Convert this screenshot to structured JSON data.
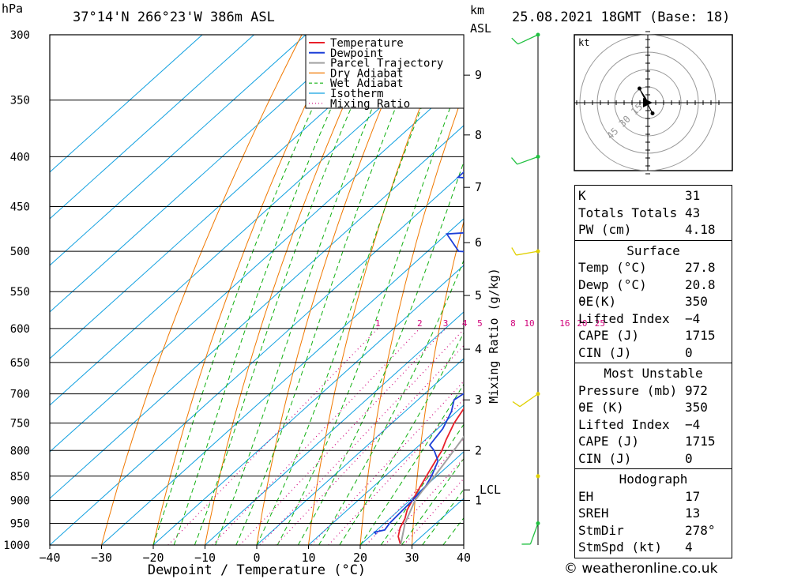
{
  "header": {
    "location": "37°14'N  266°23'W  386m  ASL",
    "datetime": "25.08.2021  18GMT  (Base: 18)",
    "hpa_unit": "hPa",
    "km_unit": "km",
    "asl_unit": "ASL"
  },
  "chart_data": {
    "type": "line",
    "title": "37°14'N  266°23'W  386m  ASL",
    "xlabel": "Dewpoint / Temperature (°C)",
    "ylabel": "hPa",
    "y2label": "Mixing Ratio (g/kg)",
    "xlim": [
      -40,
      40
    ],
    "ylim": [
      1000,
      300
    ],
    "pressure_ticks": [
      300,
      350,
      400,
      450,
      500,
      550,
      600,
      650,
      700,
      750,
      800,
      850,
      900,
      950,
      1000
    ],
    "temp_ticks": [
      -40,
      -30,
      -20,
      -10,
      0,
      10,
      20,
      30,
      40
    ],
    "temp_tick_labels": [
      "−40",
      "−30",
      "−20",
      "−10",
      "0",
      "10",
      "20",
      "30",
      "40"
    ],
    "km_ticks": [
      {
        "label": "1",
        "p": 900
      },
      {
        "label": "2",
        "p": 800
      },
      {
        "label": "3",
        "p": 710
      },
      {
        "label": "4",
        "p": 630
      },
      {
        "label": "5",
        "p": 555
      },
      {
        "label": "6",
        "p": 490
      },
      {
        "label": "7",
        "p": 430
      },
      {
        "label": "8",
        "p": 380
      },
      {
        "label": "9",
        "p": 330
      }
    ],
    "lcl": {
      "label": "LCL",
      "p": 878
    },
    "mixing_ratio_labels": [
      "1",
      "2",
      "3",
      "4",
      "5",
      "8",
      "10",
      "16",
      "20",
      "25"
    ],
    "legend": [
      "Temperature",
      "Dewpoint",
      "Parcel Trajectory",
      "Dry Adiabat",
      "Wet Adiabat",
      "Isotherm",
      "Mixing Ratio"
    ],
    "legend_position": "top-right",
    "colors": {
      "temperature": "#e8202a",
      "dewpoint": "#1c3fd8",
      "parcel": "#a0a0a0",
      "dry_adiabat": "#f07800",
      "wet_adiabat": "#10b010",
      "isotherm": "#10a0e0",
      "mixing_ratio": "#d0007a",
      "wind_green": "#20c040",
      "wind_yellow": "#e0d000"
    },
    "series": [
      {
        "name": "Temperature",
        "points": [
          [
            1000,
            27.8
          ],
          [
            980,
            25.5
          ],
          [
            960,
            24
          ],
          [
            940,
            23
          ],
          [
            920,
            21.5
          ],
          [
            900,
            20.5
          ],
          [
            870,
            19
          ],
          [
            850,
            18
          ],
          [
            820,
            16.5
          ],
          [
            800,
            15.5
          ],
          [
            780,
            14
          ],
          [
            750,
            12
          ],
          [
            720,
            10.5
          ],
          [
            700,
            9.5
          ],
          [
            680,
            9
          ],
          [
            650,
            7.5
          ],
          [
            620,
            6
          ],
          [
            600,
            5
          ],
          [
            580,
            4
          ],
          [
            550,
            2.5
          ],
          [
            520,
            0
          ],
          [
            500,
            -3
          ],
          [
            490,
            -3
          ],
          [
            470,
            -5
          ],
          [
            450,
            -8
          ],
          [
            430,
            -10
          ],
          [
            420,
            -10.5
          ],
          [
            400,
            -14
          ],
          [
            380,
            -18
          ],
          [
            360,
            -22
          ],
          [
            340,
            -26
          ],
          [
            320,
            -30
          ],
          [
            300,
            -34
          ]
        ]
      },
      {
        "name": "Dewpoint",
        "points": [
          [
            975,
            20.8
          ],
          [
            970,
            20
          ],
          [
            965,
            21.5
          ],
          [
            950,
            21
          ],
          [
            900,
            20.5
          ],
          [
            870,
            20
          ],
          [
            850,
            19
          ],
          [
            820,
            17
          ],
          [
            800,
            14
          ],
          [
            790,
            12
          ],
          [
            760,
            11
          ],
          [
            730,
            9
          ],
          [
            710,
            7
          ],
          [
            700,
            7.5
          ],
          [
            690,
            8
          ],
          [
            670,
            6
          ],
          [
            650,
            5
          ],
          [
            630,
            5
          ],
          [
            620,
            6.5
          ],
          [
            610,
            4
          ],
          [
            600,
            5
          ],
          [
            580,
            3
          ],
          [
            560,
            1.5
          ],
          [
            550,
            -5
          ],
          [
            540,
            -7
          ],
          [
            530,
            -7
          ],
          [
            525,
            -4
          ],
          [
            515,
            -4
          ],
          [
            505,
            -11
          ],
          [
            500,
            -24
          ],
          [
            480,
            -30
          ],
          [
            470,
            -5
          ],
          [
            468,
            -15
          ],
          [
            465,
            -15
          ],
          [
            460,
            -5
          ],
          [
            455,
            -20
          ],
          [
            450,
            -30
          ],
          [
            445,
            -20
          ],
          [
            440,
            -4
          ],
          [
            430,
            -4
          ],
          [
            420,
            -40
          ],
          [
            400,
            -40
          ],
          [
            380,
            -37
          ],
          [
            360,
            -25
          ],
          [
            355,
            -12
          ],
          [
            350,
            -21
          ],
          [
            345,
            -21
          ],
          [
            320,
            -26
          ],
          [
            300,
            -26
          ],
          [
            290,
            -20
          ]
        ]
      },
      {
        "name": "Parcel Trajectory",
        "points": [
          [
            1000,
            27.8
          ],
          [
            950,
            24
          ],
          [
            900,
            21
          ],
          [
            878,
            20.3
          ],
          [
            850,
            19.6
          ],
          [
            800,
            17.8
          ],
          [
            750,
            15.8
          ],
          [
            700,
            13.5
          ],
          [
            650,
            11
          ],
          [
            600,
            8.2
          ],
          [
            550,
            5
          ],
          [
            500,
            1.3
          ],
          [
            450,
            -3
          ],
          [
            400,
            -8
          ],
          [
            370,
            -12
          ]
        ]
      }
    ],
    "wind_barbs": [
      {
        "p": 300,
        "color": "green",
        "dir_deg": 245,
        "speed_kt": 10
      },
      {
        "p": 400,
        "color": "green",
        "dir_deg": 250,
        "speed_kt": 10
      },
      {
        "p": 500,
        "color": "yellow",
        "dir_deg": 260,
        "speed_kt": 10
      },
      {
        "p": 700,
        "color": "yellow",
        "dir_deg": 235,
        "speed_kt": 10
      },
      {
        "p": 850,
        "color": "yellow",
        "dir_deg": 0,
        "speed_kt": 0
      },
      {
        "p": 950,
        "color": "green",
        "dir_deg": 200,
        "speed_kt": 5
      }
    ],
    "hodograph": {
      "unit": "kt",
      "ring_labels": [
        "15",
        "30",
        "45"
      ],
      "points": [
        [
          0,
          0
        ],
        [
          -2,
          4
        ],
        [
          -6,
          10
        ],
        [
          -7,
          12
        ],
        [
          -5,
          8
        ],
        [
          4,
          -9
        ]
      ]
    }
  },
  "info": {
    "indices": [
      {
        "label": "K",
        "value": "31"
      },
      {
        "label": "Totals Totals",
        "value": "43"
      },
      {
        "label": "PW (cm)",
        "value": "4.18"
      }
    ],
    "surface_title": "Surface",
    "surface": [
      {
        "label": "Temp (°C)",
        "value": "27.8"
      },
      {
        "label": "Dewp (°C)",
        "value": "20.8"
      },
      {
        "label": "θE(K)",
        "value": "350"
      },
      {
        "label": "Lifted Index",
        "value": "−4"
      },
      {
        "label": "CAPE (J)",
        "value": "1715"
      },
      {
        "label": "CIN (J)",
        "value": "0"
      }
    ],
    "unstable_title": "Most Unstable",
    "unstable": [
      {
        "label": "Pressure (mb)",
        "value": "972"
      },
      {
        "label": "θE (K)",
        "value": "350"
      },
      {
        "label": "Lifted Index",
        "value": "−4"
      },
      {
        "label": "CAPE (J)",
        "value": "1715"
      },
      {
        "label": "CIN (J)",
        "value": "0"
      }
    ],
    "hodograph_title": "Hodograph",
    "hodograph": [
      {
        "label": "EH",
        "value": "17"
      },
      {
        "label": "SREH",
        "value": "13"
      },
      {
        "label": "StmDir",
        "value": "278°"
      },
      {
        "label": "StmSpd (kt)",
        "value": "4"
      }
    ]
  },
  "copyright": "© weatheronline.co.uk"
}
